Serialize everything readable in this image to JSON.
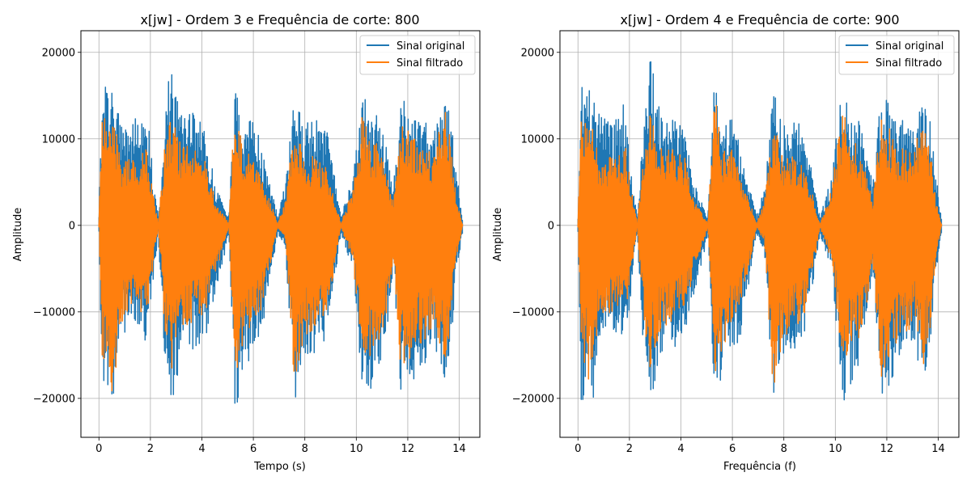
{
  "chart_data": [
    {
      "type": "line",
      "title": "x[jw] - Ordem 3 e Frequência de corte: 800",
      "xlabel": "Tempo (s)",
      "ylabel": "Amplitude",
      "xlim": [
        -0.7,
        14.8
      ],
      "ylim": [
        -24500,
        22500
      ],
      "xticks": [
        0,
        2,
        4,
        6,
        8,
        10,
        12,
        14
      ],
      "xtick_labels": [
        "0",
        "2",
        "4",
        "6",
        "8",
        "10",
        "12",
        "14"
      ],
      "yticks": [
        -20000,
        -10000,
        0,
        10000,
        20000
      ],
      "ytick_labels": [
        "−20000",
        "−10000",
        "0",
        "10000",
        "20000"
      ],
      "grid": true,
      "legend_position": "top-right",
      "series": [
        {
          "name": "Sinal original",
          "color": "#1f77b4",
          "x": [
            0,
            0.13,
            0.25,
            0.6,
            0.78,
            0.95,
            1.3,
            1.55,
            1.85,
            2.1,
            2.3,
            2.55,
            2.8,
            3.2,
            3.7,
            4.15,
            4.5,
            5.05,
            5.3,
            5.6,
            5.95,
            6.3,
            6.95,
            7.25,
            7.6,
            7.95,
            8.4,
            8.85,
            9.4,
            9.85,
            10.3,
            10.55,
            10.8,
            11.1,
            11.45,
            11.75,
            12.0,
            12.4,
            12.75,
            13.05,
            13.4,
            13.65,
            13.9,
            14.12
          ],
          "env_max": [
            1000,
            16500,
            16800,
            15600,
            14000,
            12500,
            11800,
            13000,
            14500,
            6000,
            1000,
            12000,
            20300,
            12800,
            13000,
            11000,
            5000,
            1000,
            17000,
            11000,
            12800,
            9500,
            1000,
            5000,
            15500,
            12000,
            12500,
            11500,
            1000,
            5500,
            17000,
            13000,
            13300,
            10000,
            5000,
            14300,
            14500,
            12000,
            12500,
            11000,
            14500,
            13000,
            6000,
            1000
          ],
          "env_min": [
            -1000,
            -21900,
            -19000,
            -20200,
            -13000,
            -12500,
            -12000,
            -12500,
            -14000,
            -7000,
            -1000,
            -15000,
            -21200,
            -15000,
            -14300,
            -13000,
            -9000,
            -1000,
            -22300,
            -17000,
            -15000,
            -13000,
            -1000,
            -3000,
            -20500,
            -16000,
            -15000,
            -13500,
            -1000,
            -5000,
            -21000,
            -20000,
            -17000,
            -15000,
            -5000,
            -21500,
            -19000,
            -17000,
            -16000,
            -14000,
            -18000,
            -15000,
            -6000,
            -1000
          ]
        },
        {
          "name": "Sinal filtrado",
          "color": "#ff7f0e",
          "x": [
            0,
            0.13,
            0.25,
            0.6,
            0.78,
            0.95,
            1.3,
            1.55,
            1.85,
            2.1,
            2.3,
            2.55,
            2.8,
            3.2,
            3.7,
            4.15,
            4.5,
            5.05,
            5.3,
            5.6,
            5.95,
            6.3,
            6.95,
            7.25,
            7.6,
            7.95,
            8.4,
            8.85,
            9.4,
            9.85,
            10.3,
            10.55,
            10.8,
            11.1,
            11.45,
            11.75,
            12.0,
            12.4,
            12.75,
            13.05,
            13.4,
            13.65,
            13.9,
            14.12
          ],
          "env_max": [
            300,
            14700,
            13500,
            13000,
            8500,
            7500,
            8000,
            8000,
            9000,
            4000,
            200,
            9000,
            12700,
            9500,
            9000,
            8000,
            3000,
            200,
            15700,
            8500,
            9000,
            6000,
            200,
            3000,
            12000,
            8000,
            8000,
            7000,
            200,
            4000,
            14300,
            9000,
            9500,
            7000,
            3000,
            12500,
            12000,
            9000,
            9000,
            8000,
            14300,
            10000,
            3000,
            200
          ],
          "env_min": [
            -300,
            -18000,
            -16000,
            -20500,
            -12000,
            -11000,
            -10000,
            -10000,
            -11000,
            -5000,
            -200,
            -12000,
            -17000,
            -12000,
            -11000,
            -10000,
            -6000,
            -200,
            -17500,
            -14500,
            -12000,
            -10000,
            -200,
            -2000,
            -20000,
            -13000,
            -12000,
            -11000,
            -200,
            -4000,
            -16500,
            -15000,
            -14000,
            -12000,
            -4000,
            -18000,
            -16000,
            -14000,
            -13000,
            -11000,
            -16500,
            -13000,
            -4000,
            -200
          ]
        }
      ]
    },
    {
      "type": "line",
      "title": "x[jw] - Ordem 4 e Frequência de corte: 900",
      "xlabel": "Frequência (f)",
      "ylabel": "Amplitude",
      "xlim": [
        -0.7,
        14.8
      ],
      "ylim": [
        -24500,
        22500
      ],
      "xticks": [
        0,
        2,
        4,
        6,
        8,
        10,
        12,
        14
      ],
      "xtick_labels": [
        "0",
        "2",
        "4",
        "6",
        "8",
        "10",
        "12",
        "14"
      ],
      "yticks": [
        -20000,
        -10000,
        0,
        10000,
        20000
      ],
      "ytick_labels": [
        "−20000",
        "−10000",
        "0",
        "10000",
        "20000"
      ],
      "grid": true,
      "legend_position": "top-right",
      "series": [
        {
          "name": "Sinal original",
          "color": "#1f77b4",
          "x": [
            0,
            0.13,
            0.25,
            0.6,
            0.78,
            0.95,
            1.3,
            1.55,
            1.85,
            2.1,
            2.3,
            2.55,
            2.8,
            3.2,
            3.7,
            4.15,
            4.5,
            5.05,
            5.3,
            5.6,
            5.95,
            6.3,
            6.95,
            7.25,
            7.6,
            7.95,
            8.4,
            8.85,
            9.4,
            9.85,
            10.3,
            10.55,
            10.8,
            11.1,
            11.45,
            11.75,
            12.0,
            12.4,
            12.75,
            13.05,
            13.4,
            13.65,
            13.9,
            14.12
          ],
          "env_max": [
            1000,
            16500,
            16800,
            15600,
            14000,
            12500,
            11800,
            13000,
            14500,
            6000,
            1000,
            12000,
            20300,
            12800,
            13000,
            11000,
            5000,
            1000,
            17000,
            11000,
            12800,
            9500,
            1000,
            5000,
            15500,
            12000,
            12500,
            11500,
            1000,
            5500,
            17000,
            13000,
            13300,
            10000,
            5000,
            14300,
            14500,
            12000,
            12500,
            11000,
            14500,
            13000,
            6000,
            1000
          ],
          "env_min": [
            -1000,
            -21900,
            -19000,
            -20200,
            -13000,
            -12500,
            -12000,
            -12500,
            -14000,
            -7000,
            -1000,
            -15000,
            -21200,
            -15000,
            -14300,
            -13000,
            -9000,
            -1000,
            -22300,
            -17000,
            -15000,
            -13000,
            -1000,
            -3000,
            -20500,
            -16000,
            -15000,
            -13500,
            -1000,
            -5000,
            -21000,
            -20000,
            -17000,
            -15000,
            -5000,
            -21500,
            -19000,
            -17000,
            -16000,
            -14000,
            -18000,
            -15000,
            -6000,
            -1000
          ]
        },
        {
          "name": "Sinal filtrado",
          "color": "#ff7f0e",
          "x": [
            0,
            0.13,
            0.25,
            0.6,
            0.78,
            0.95,
            1.3,
            1.55,
            1.85,
            2.1,
            2.3,
            2.55,
            2.8,
            3.2,
            3.7,
            4.15,
            4.5,
            5.05,
            5.3,
            5.6,
            5.95,
            6.3,
            6.95,
            7.25,
            7.6,
            7.95,
            8.4,
            8.85,
            9.4,
            9.85,
            10.3,
            10.55,
            10.8,
            11.1,
            11.45,
            11.75,
            12.0,
            12.4,
            12.75,
            13.05,
            13.4,
            13.65,
            13.9,
            14.12
          ],
          "env_max": [
            300,
            14700,
            13500,
            13000,
            8500,
            7500,
            8000,
            8000,
            9000,
            4000,
            200,
            9000,
            12700,
            9500,
            9000,
            8000,
            3000,
            200,
            15700,
            8500,
            9000,
            6000,
            200,
            3000,
            12000,
            8000,
            8000,
            7000,
            200,
            4000,
            14300,
            9000,
            9500,
            7000,
            3000,
            12500,
            12000,
            9000,
            9000,
            8000,
            14300,
            10000,
            3000,
            200
          ],
          "env_min": [
            -300,
            -18000,
            -16000,
            -21200,
            -12000,
            -11000,
            -10000,
            -10000,
            -11000,
            -5000,
            -200,
            -12000,
            -17000,
            -12000,
            -11000,
            -10000,
            -6000,
            -200,
            -17500,
            -14500,
            -12000,
            -10000,
            -200,
            -2000,
            -20500,
            -13000,
            -12000,
            -11000,
            -200,
            -4000,
            -16500,
            -15000,
            -14000,
            -12000,
            -4000,
            -18000,
            -16000,
            -14000,
            -13000,
            -11000,
            -16500,
            -13000,
            -4000,
            -200
          ]
        }
      ]
    }
  ]
}
